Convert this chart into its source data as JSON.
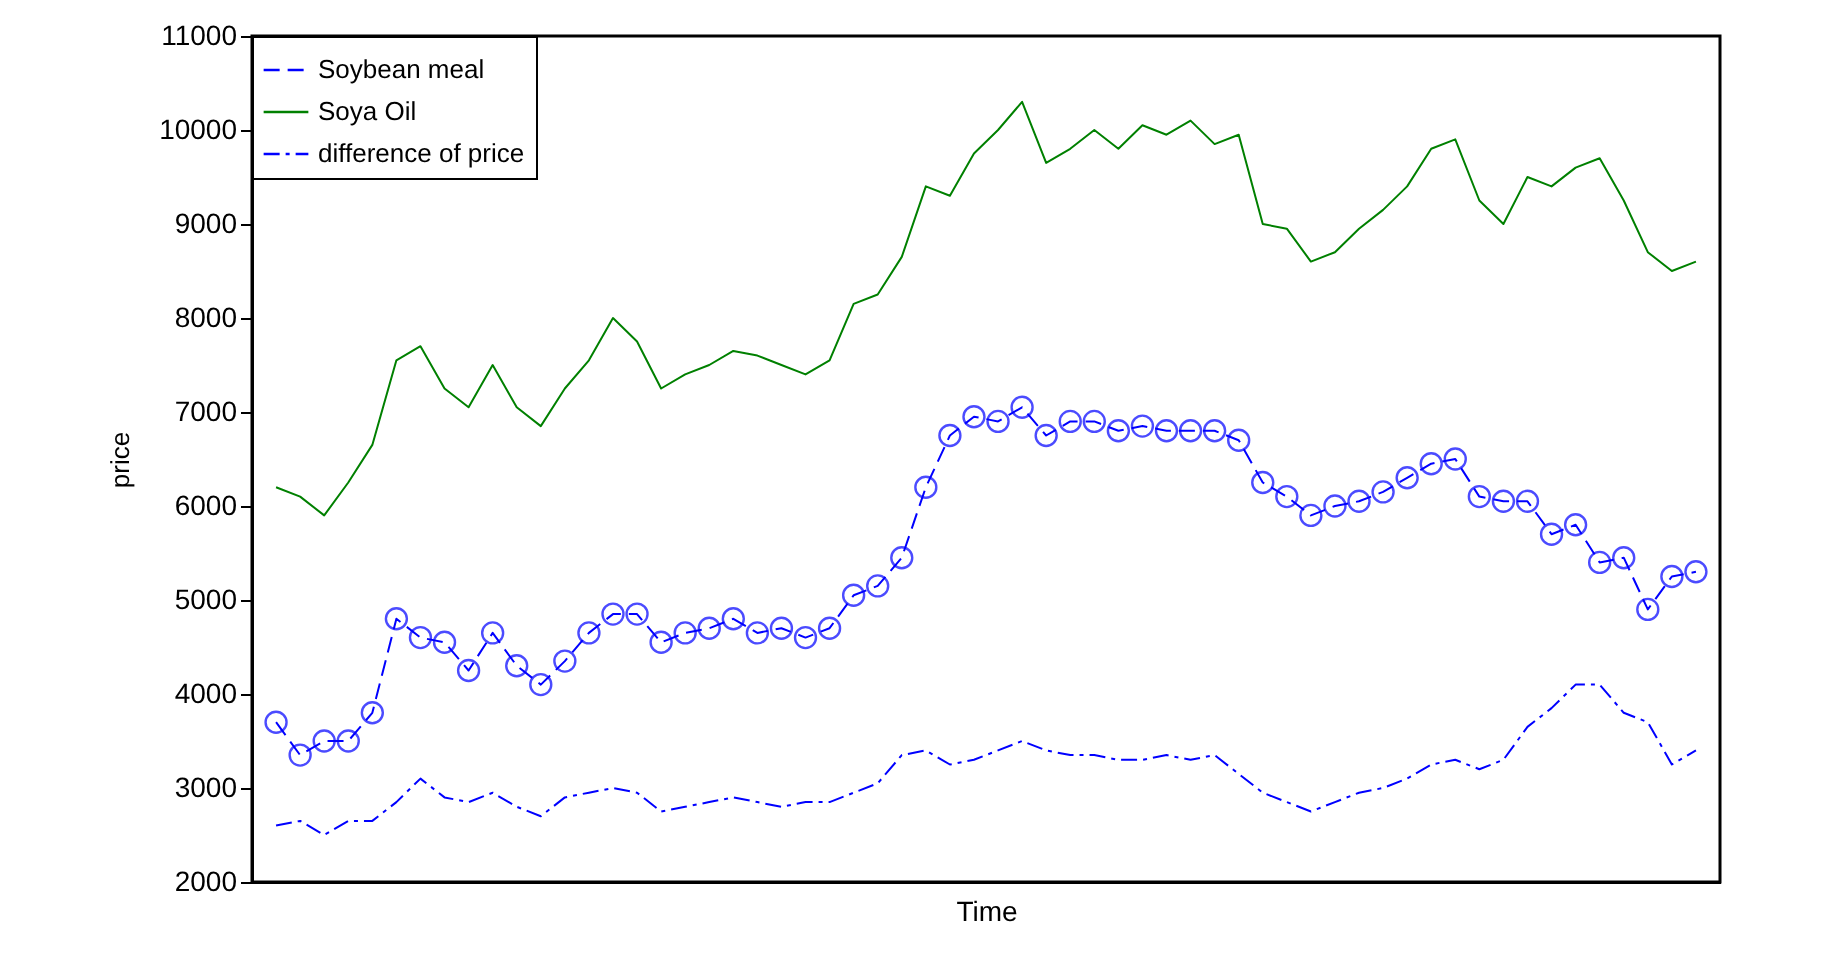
{
  "chart_data": {
    "type": "line",
    "xlabel": "Time",
    "ylabel": "price",
    "categories": [
      null,
      null,
      null,
      null,
      null,
      null,
      null,
      null,
      null,
      null,
      null,
      null,
      null,
      null,
      null,
      null,
      null,
      null,
      null,
      null,
      null,
      null,
      null,
      null,
      null,
      null,
      null,
      null,
      null,
      null,
      null,
      null,
      null,
      null,
      null,
      null,
      null,
      null,
      null,
      null,
      null,
      null,
      null,
      null,
      null,
      null,
      null,
      null,
      null,
      null,
      null,
      null,
      null,
      null,
      null,
      null,
      null,
      null,
      null,
      null
    ],
    "ylim": [
      2000,
      11000
    ],
    "yticks": [
      2000,
      3000,
      4000,
      5000,
      6000,
      7000,
      8000,
      9000,
      10000,
      11000
    ],
    "legend": "top left",
    "series": [
      {
        "name": "Soybean meal",
        "color": "#0000ff",
        "line_style": "dashed",
        "marker": "circle",
        "values": [
          3700,
          3350,
          3500,
          3500,
          3800,
          4800,
          4600,
          4550,
          4250,
          4650,
          4300,
          4100,
          4350,
          4650,
          4850,
          4850,
          4550,
          4650,
          4700,
          4800,
          4650,
          4700,
          4600,
          4700,
          5050,
          5150,
          5450,
          6200,
          6750,
          6950,
          6900,
          7050,
          6750,
          6900,
          6900,
          6800,
          6850,
          6800,
          6800,
          6800,
          6700,
          6250,
          6100,
          5900,
          6000,
          6050,
          6150,
          6300,
          6450,
          6500,
          6100,
          6050,
          6050,
          5700,
          5800,
          5400,
          5450,
          4900,
          5250,
          5300
        ]
      },
      {
        "name": "Soya Oil",
        "color": "#008000",
        "line_style": "solid",
        "marker": "none",
        "values": [
          6200,
          6100,
          5900,
          6250,
          6650,
          7550,
          7700,
          7250,
          7050,
          7500,
          7050,
          6850,
          7250,
          7550,
          8000,
          7750,
          7250,
          7400,
          7500,
          7650,
          7600,
          7500,
          7400,
          7550,
          8150,
          8250,
          8650,
          9400,
          9300,
          9750,
          10000,
          10300,
          9650,
          9800,
          10000,
          9800,
          10050,
          9950,
          10100,
          9850,
          9950,
          9000,
          8950,
          8600,
          8700,
          8950,
          9150,
          9400,
          9800,
          9900,
          9250,
          9000,
          9500,
          9400,
          9600,
          9700,
          9250,
          8700,
          8500,
          8600
        ]
      },
      {
        "name": "difference of price",
        "color": "#0000ff",
        "line_style": "dashdot",
        "marker": "none",
        "values": [
          2600,
          2650,
          2500,
          2650,
          2650,
          2850,
          3100,
          2900,
          2850,
          2950,
          2800,
          2700,
          2900,
          2950,
          3000,
          2950,
          2750,
          2800,
          2850,
          2900,
          2850,
          2800,
          2850,
          2850,
          2950,
          3050,
          3350,
          3400,
          3250,
          3300,
          3400,
          3500,
          3400,
          3350,
          3350,
          3300,
          3300,
          3350,
          3300,
          3350,
          3150,
          2950,
          2850,
          2750,
          2850,
          2950,
          3000,
          3100,
          3250,
          3300,
          3200,
          3300,
          3650,
          3850,
          4100,
          4100,
          3800,
          3700,
          3250,
          3400
        ]
      }
    ]
  }
}
